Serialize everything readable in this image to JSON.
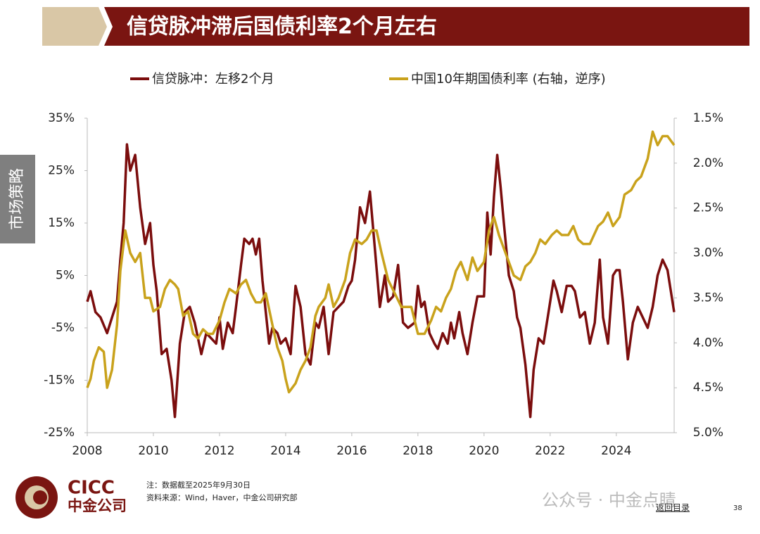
{
  "header": {
    "title": "信贷脉冲滞后国债利率2个月左右"
  },
  "side_tab": "市场策略",
  "chart_data": {
    "type": "line",
    "legend": "top",
    "xlim": [
      2008,
      2025.75
    ],
    "xticks": [
      2008,
      2010,
      2012,
      2014,
      2016,
      2018,
      2020,
      2022,
      2024
    ],
    "ylim": [
      -25,
      35
    ],
    "yticks": [
      {
        "value": 35,
        "label": "35%"
      },
      {
        "value": 25,
        "label": "25%"
      },
      {
        "value": 15,
        "label": "15%"
      },
      {
        "value": 5,
        "label": "5%"
      },
      {
        "value": -5,
        "label": "-5%"
      },
      {
        "value": -15,
        "label": "-15%"
      },
      {
        "value": -25,
        "label": "-25%"
      }
    ],
    "y2lim": [
      5.0,
      1.5
    ],
    "y2ticks": [
      {
        "value": 1.5,
        "label": "1.5%"
      },
      {
        "value": 2.0,
        "label": "2.0%"
      },
      {
        "value": 2.5,
        "label": "2.5%"
      },
      {
        "value": 3.0,
        "label": "3.0%"
      },
      {
        "value": 3.5,
        "label": "3.5%"
      },
      {
        "value": 4.0,
        "label": "4.0%"
      },
      {
        "value": 4.5,
        "label": "4.5%"
      },
      {
        "value": 5.0,
        "label": "5.0%"
      }
    ],
    "series": [
      {
        "name": "信贷脉冲：左移2个月",
        "color": "#7b0d0d",
        "x": [
          2008.0,
          2008.1,
          2008.25,
          2008.4,
          2008.6,
          2008.75,
          2008.9,
          2009.0,
          2009.1,
          2009.2,
          2009.3,
          2009.45,
          2009.6,
          2009.75,
          2009.9,
          2010.0,
          2010.1,
          2010.25,
          2010.4,
          2010.55,
          2010.65,
          2010.8,
          2010.95,
          2011.1,
          2011.25,
          2011.45,
          2011.6,
          2011.75,
          2011.9,
          2012.0,
          2012.1,
          2012.25,
          2012.4,
          2012.5,
          2012.65,
          2012.75,
          2012.9,
          2013.0,
          2013.1,
          2013.2,
          2013.3,
          2013.5,
          2013.6,
          2013.75,
          2013.85,
          2014.0,
          2014.15,
          2014.3,
          2014.45,
          2014.6,
          2014.75,
          2014.9,
          2015.0,
          2015.15,
          2015.3,
          2015.45,
          2015.6,
          2015.75,
          2015.9,
          2016.0,
          2016.1,
          2016.25,
          2016.4,
          2016.55,
          2016.7,
          2016.85,
          2017.0,
          2017.1,
          2017.25,
          2017.4,
          2017.55,
          2017.7,
          2017.9,
          2018.0,
          2018.1,
          2018.2,
          2018.35,
          2018.5,
          2018.6,
          2018.75,
          2018.9,
          2019.0,
          2019.1,
          2019.25,
          2019.35,
          2019.5,
          2019.65,
          2019.8,
          2020.0,
          2020.1,
          2020.2,
          2020.3,
          2020.4,
          2020.5,
          2020.6,
          2020.75,
          2020.9,
          2021.0,
          2021.1,
          2021.25,
          2021.4,
          2021.5,
          2021.65,
          2021.8,
          2021.95,
          2022.1,
          2022.2,
          2022.35,
          2022.5,
          2022.65,
          2022.75,
          2022.9,
          2023.05,
          2023.2,
          2023.35,
          2023.5,
          2023.6,
          2023.75,
          2023.9,
          2024.0,
          2024.1,
          2024.2,
          2024.35,
          2024.5,
          2024.65,
          2024.8,
          2024.95,
          2025.1,
          2025.25,
          2025.4,
          2025.55,
          2025.75
        ],
        "values": [
          0,
          2,
          -2,
          -3,
          -6,
          -3,
          0,
          8,
          15,
          30,
          25,
          28,
          18,
          11,
          15,
          7,
          2,
          -10,
          -9,
          -15,
          -22,
          -8,
          -2,
          -1,
          -4,
          -10,
          -6,
          -7,
          -8,
          -3,
          -9,
          -4,
          -6,
          -1,
          7,
          12,
          11,
          12,
          9,
          12,
          4,
          -8,
          -5,
          -6,
          -8,
          -7,
          -10,
          3,
          -1,
          -10,
          -12,
          -4,
          -5,
          -1,
          -10,
          -2,
          -1,
          0,
          3,
          4,
          8,
          18,
          15,
          21,
          10,
          -1,
          5,
          0,
          1,
          7,
          -4,
          -5,
          -4,
          3,
          -1,
          0,
          -6,
          -8,
          -9,
          -6,
          -8,
          -4,
          -7,
          -2,
          -6,
          -10,
          -4,
          1,
          1,
          17,
          9,
          20,
          28,
          22,
          15,
          5,
          2,
          -3,
          -5,
          -12,
          -22,
          -13,
          -7,
          -8,
          -2,
          4,
          2,
          -2,
          3,
          3,
          2,
          -3,
          -2,
          -8,
          -4,
          8,
          -3,
          -8,
          5,
          6,
          6,
          0,
          -11,
          -4,
          -1,
          -3,
          -5,
          -1,
          5,
          8,
          6,
          -2
        ]
      },
      {
        "name": "中国10年期国债利率 (右轴，逆序)",
        "color": "#c9a21c",
        "axis": "y2",
        "x": [
          2008.0,
          2008.1,
          2008.2,
          2008.35,
          2008.5,
          2008.6,
          2008.75,
          2008.9,
          2009.0,
          2009.15,
          2009.3,
          2009.45,
          2009.6,
          2009.75,
          2009.9,
          2010.0,
          2010.2,
          2010.35,
          2010.5,
          2010.65,
          2010.75,
          2010.9,
          2011.05,
          2011.2,
          2011.35,
          2011.5,
          2011.65,
          2011.8,
          2012.0,
          2012.15,
          2012.3,
          2012.5,
          2012.65,
          2012.8,
          2012.95,
          2013.1,
          2013.25,
          2013.4,
          2013.6,
          2013.75,
          2013.9,
          2014.0,
          2014.1,
          2014.3,
          2014.45,
          2014.6,
          2014.75,
          2014.9,
          2015.0,
          2015.2,
          2015.3,
          2015.45,
          2015.6,
          2015.8,
          2015.95,
          2016.1,
          2016.3,
          2016.45,
          2016.6,
          2016.75,
          2016.9,
          2017.1,
          2017.3,
          2017.5,
          2017.65,
          2017.8,
          2018.0,
          2018.2,
          2018.4,
          2018.55,
          2018.7,
          2018.85,
          2019.0,
          2019.15,
          2019.3,
          2019.5,
          2019.65,
          2019.8,
          2020.0,
          2020.15,
          2020.3,
          2020.45,
          2020.6,
          2020.75,
          2020.9,
          2021.1,
          2021.25,
          2021.4,
          2021.55,
          2021.7,
          2021.85,
          2022.05,
          2022.2,
          2022.35,
          2022.55,
          2022.7,
          2022.85,
          2023.0,
          2023.2,
          2023.45,
          2023.6,
          2023.75,
          2023.9,
          2024.1,
          2024.25,
          2024.45,
          2024.6,
          2024.75,
          2024.95,
          2025.1,
          2025.25,
          2025.4,
          2025.55,
          2025.75
        ],
        "values": [
          4.5,
          4.4,
          4.2,
          4.05,
          4.1,
          4.5,
          4.3,
          3.8,
          3.2,
          2.75,
          3.0,
          3.1,
          3.0,
          3.5,
          3.5,
          3.65,
          3.6,
          3.4,
          3.3,
          3.35,
          3.4,
          3.7,
          3.65,
          3.9,
          3.95,
          3.85,
          3.9,
          3.9,
          3.75,
          3.55,
          3.4,
          3.45,
          3.35,
          3.3,
          3.45,
          3.55,
          3.55,
          3.45,
          3.8,
          4.05,
          4.2,
          4.4,
          4.55,
          4.45,
          4.3,
          4.2,
          4.05,
          3.7,
          3.6,
          3.5,
          3.35,
          3.6,
          3.5,
          3.3,
          3.0,
          2.85,
          2.9,
          2.85,
          2.75,
          2.75,
          3.0,
          3.3,
          3.45,
          3.6,
          3.6,
          3.6,
          3.9,
          3.9,
          3.75,
          3.6,
          3.65,
          3.5,
          3.4,
          3.2,
          3.1,
          3.3,
          3.05,
          3.2,
          3.1,
          2.75,
          2.6,
          2.8,
          2.95,
          3.1,
          3.25,
          3.3,
          3.15,
          3.1,
          3.0,
          2.85,
          2.9,
          2.8,
          2.75,
          2.8,
          2.8,
          2.7,
          2.85,
          2.9,
          2.9,
          2.7,
          2.65,
          2.55,
          2.7,
          2.6,
          2.35,
          2.3,
          2.2,
          2.15,
          1.95,
          1.65,
          1.8,
          1.7,
          1.7,
          1.8
        ]
      }
    ]
  },
  "footer": {
    "logo_en": "CICC",
    "logo_cn": "中金公司",
    "note": "注：数据截至2025年9月30日",
    "source": "资料来源：Wind，Haver，中金公司研究部",
    "watermark": "公众号 · 中金点睛",
    "back": "返回目录",
    "page_number": "38"
  }
}
